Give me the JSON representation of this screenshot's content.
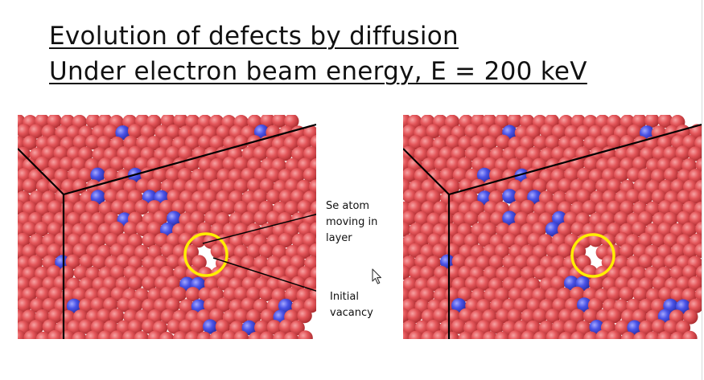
{
  "slide": {
    "title_line1": "Evolution of defects by diffusion",
    "title_line2": "Under electron beam energy, E = 200 keV"
  },
  "annotations": {
    "se_atom": [
      "Se atom",
      "moving in",
      "layer"
    ],
    "vacancy": [
      "Initial",
      "vacancy"
    ]
  },
  "colors": {
    "se_atom": "#e4565a",
    "metal_atom": "#4a52e6",
    "highlight_circle": "#ffee00",
    "edge_lines": "#000000"
  },
  "icons": {
    "pointer": "mouse-pointer-icon"
  }
}
